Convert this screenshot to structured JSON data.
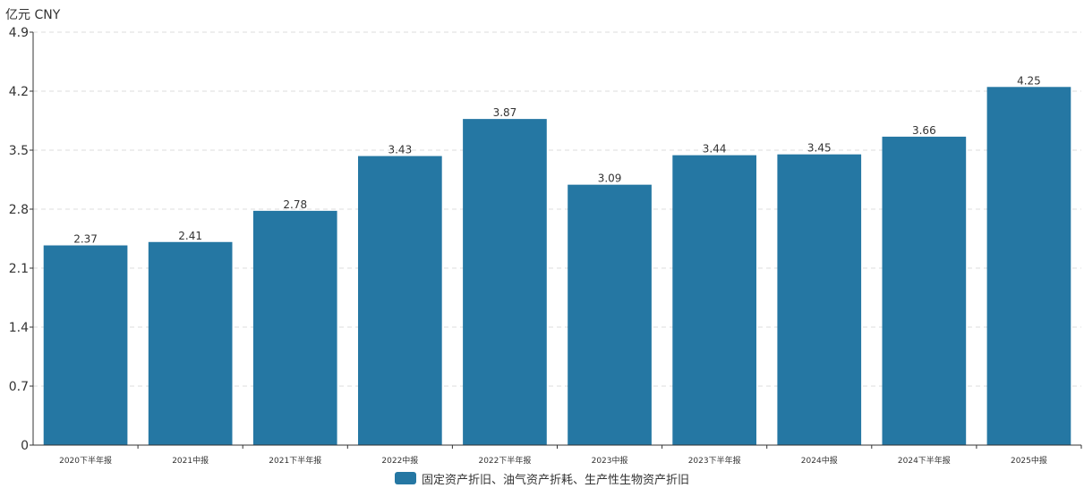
{
  "chart_data": {
    "type": "bar",
    "unit_label": "亿元  CNY",
    "categories": [
      "2020下半年报",
      "2021中报",
      "2021下半年报",
      "2022中报",
      "2022下半年报",
      "2023中报",
      "2023下半年报",
      "2024中报",
      "2024下半年报",
      "2025中报"
    ],
    "series": [
      {
        "name": "固定资产折旧、油气资产折耗、生产性生物资产折旧",
        "values": [
          2.37,
          2.41,
          2.78,
          3.43,
          3.87,
          3.09,
          3.44,
          3.45,
          3.66,
          4.25
        ],
        "value_labels": [
          "2.37",
          "2.41",
          "2.78",
          "3.43",
          "3.87",
          "3.09",
          "3.44",
          "3.45",
          "3.66",
          "4.25"
        ]
      }
    ],
    "ylim": [
      0,
      4.9
    ],
    "yticks": [
      "0",
      "0.7",
      "1.4",
      "2.1",
      "2.8",
      "3.5",
      "4.2",
      "4.9"
    ],
    "grid": true,
    "legend_position": "bottom-center",
    "colors": {
      "bar": "#2577a3",
      "axis": "#333333",
      "grid": "#dddddd"
    }
  }
}
